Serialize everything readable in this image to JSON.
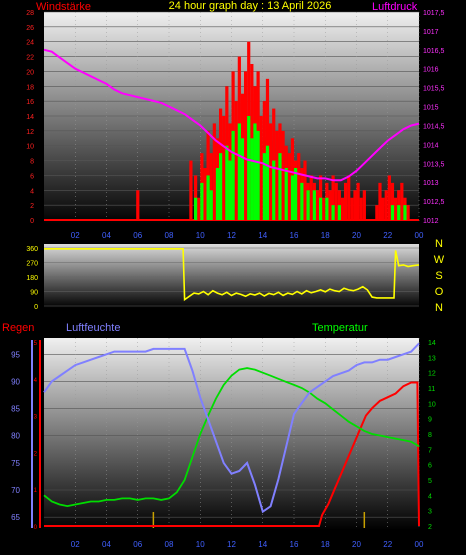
{
  "colors": {
    "wind": "#ff0000",
    "gust": "#00ff00",
    "pressure": "#ff00ff",
    "direction": "#ffff00",
    "humidity": "#8080ff",
    "temperature": "#00dd00",
    "rain": "#ff0000",
    "rain_label": "#ff0000",
    "title": "#ffff00",
    "tick_left_top": "#ff2020",
    "tick_right_top": "#ff30ff",
    "tick_bottom_left": "#8080ff",
    "tick_bottom_right": "#00dd00"
  },
  "chart_data": [
    {
      "id": "wind-pressure",
      "type": "bar",
      "title": "24 hour graph day : 13 April 2026",
      "left_label": "Windstärke",
      "right_label": "Luftdruck",
      "x_ticks": [
        "02",
        "04",
        "06",
        "08",
        "10",
        "12",
        "14",
        "16",
        "18",
        "20",
        "22",
        "00"
      ],
      "x_range": [
        0,
        24
      ],
      "y_left_range": [
        0,
        28
      ],
      "y_left_ticks": [
        "0",
        "2",
        "4",
        "6",
        "8",
        "10",
        "12",
        "14",
        "16",
        "18",
        "20",
        "22",
        "24",
        "26",
        "28"
      ],
      "y_right_range": [
        1012,
        1017.5
      ],
      "y_right_ticks": [
        "1012",
        "1012,5",
        "1013",
        "1013,5",
        "1014",
        "1014,5",
        "1015",
        "1015,5",
        "1016",
        "1016,5",
        "1017",
        "1017,5"
      ],
      "series": [
        {
          "name": "Windstärke",
          "kind": "bars",
          "x": [
            5.9,
            9.3,
            9.6,
            9.8,
            10.0,
            10.2,
            10.4,
            10.6,
            10.8,
            11.0,
            11.2,
            11.4,
            11.6,
            11.8,
            12.0,
            12.2,
            12.4,
            12.6,
            12.8,
            13.0,
            13.2,
            13.4,
            13.6,
            13.8,
            14.0,
            14.2,
            14.4,
            14.6,
            14.8,
            15.0,
            15.2,
            15.4,
            15.6,
            15.8,
            16.0,
            16.2,
            16.4,
            16.6,
            16.8,
            17.0,
            17.2,
            17.4,
            17.6,
            17.8,
            18.0,
            18.2,
            18.4,
            18.6,
            18.8,
            19.0,
            19.2,
            19.4,
            19.6,
            19.8,
            20.0,
            20.2,
            20.4,
            21.2,
            21.4,
            21.6,
            21.8,
            22.0,
            22.2,
            22.4,
            22.6,
            22.8,
            23.0,
            23.2
          ],
          "values": [
            4,
            8,
            6,
            3,
            9,
            7,
            12,
            9,
            13,
            11,
            15,
            14,
            18,
            13,
            20,
            16,
            22,
            17,
            20,
            24,
            21,
            18,
            20,
            14,
            16,
            19,
            13,
            15,
            12,
            13,
            12,
            10,
            9,
            11,
            8,
            9,
            7,
            8,
            5,
            6,
            5,
            4,
            6,
            3,
            5,
            4,
            6,
            5,
            4,
            3,
            5,
            6,
            3,
            4,
            5,
            3,
            4,
            2,
            5,
            3,
            4,
            6,
            5,
            3,
            4,
            5,
            3,
            2
          ]
        },
        {
          "name": "Böen",
          "kind": "bars",
          "x": [
            9.6,
            10.0,
            10.4,
            10.6,
            11.0,
            11.2,
            11.6,
            11.8,
            12.0,
            12.4,
            12.6,
            13.0,
            13.2,
            13.4,
            13.6,
            14.0,
            14.2,
            14.6,
            15.0,
            15.4,
            15.8,
            16.0,
            16.4,
            16.8,
            17.2,
            17.6,
            18.0,
            18.4,
            18.8,
            22.2,
            22.6,
            23.0
          ],
          "values": [
            3,
            5,
            6,
            4,
            7,
            9,
            10,
            8,
            12,
            13,
            11,
            14,
            11,
            13,
            12,
            9,
            10,
            8,
            9,
            7,
            6,
            7,
            5,
            4,
            4,
            3,
            3,
            2,
            2,
            2,
            2,
            2
          ]
        },
        {
          "name": "Luftdruck",
          "kind": "line",
          "axis": "right",
          "x": [
            0,
            0.5,
            1.0,
            1.5,
            2.0,
            2.5,
            3.0,
            3.5,
            4.0,
            4.5,
            5.0,
            5.5,
            6.0,
            6.5,
            7.0,
            7.5,
            8.0,
            8.5,
            9.0,
            9.5,
            10.0,
            10.5,
            11.0,
            11.5,
            12.0,
            12.5,
            13.0,
            13.5,
            14.0,
            14.5,
            15.0,
            15.5,
            16.0,
            16.5,
            17.0,
            17.5,
            18.0,
            18.5,
            19.0,
            19.5,
            20.0,
            20.5,
            21.0,
            21.5,
            22.0,
            22.5,
            23.0,
            23.5,
            24.0
          ],
          "values": [
            1016.5,
            1016.45,
            1016.3,
            1016.15,
            1016.0,
            1015.9,
            1015.8,
            1015.7,
            1015.6,
            1015.45,
            1015.35,
            1015.3,
            1015.25,
            1015.2,
            1015.15,
            1015.1,
            1015.0,
            1014.9,
            1014.8,
            1014.65,
            1014.5,
            1014.3,
            1014.1,
            1013.95,
            1013.8,
            1013.7,
            1013.6,
            1013.55,
            1013.5,
            1013.4,
            1013.35,
            1013.3,
            1013.25,
            1013.2,
            1013.15,
            1013.1,
            1013.1,
            1013.05,
            1013.05,
            1013.15,
            1013.3,
            1013.5,
            1013.7,
            1013.9,
            1014.1,
            1014.25,
            1014.4,
            1014.5,
            1014.55
          ]
        }
      ]
    },
    {
      "id": "wind-direction",
      "type": "line",
      "x_ticks": [],
      "x_range": [
        0,
        24
      ],
      "y_left_range": [
        0,
        360
      ],
      "y_left_ticks": [
        "0",
        "90",
        "180",
        "270",
        "360"
      ],
      "right_labels": [
        "N",
        "W",
        "S",
        "O",
        "N"
      ],
      "series": [
        {
          "name": "Windrichtung",
          "x": [
            0,
            1,
            2,
            3,
            4,
            5,
            6,
            7,
            8,
            8.9,
            9.0,
            9.3,
            9.6,
            9.9,
            10.2,
            10.5,
            10.8,
            11.1,
            11.4,
            11.7,
            12.0,
            12.3,
            12.6,
            12.9,
            13.2,
            13.5,
            13.8,
            14.1,
            14.4,
            14.7,
            15.0,
            15.3,
            15.6,
            15.9,
            16.2,
            16.5,
            16.8,
            17.1,
            17.4,
            17.7,
            18.0,
            18.3,
            18.6,
            18.9,
            19.2,
            19.5,
            19.8,
            20.1,
            20.4,
            20.7,
            21.0,
            21.3,
            21.6,
            21.9,
            22.2,
            22.4,
            22.5,
            22.7,
            23.0,
            23.3,
            23.6,
            24.0
          ],
          "values": [
            355,
            355,
            355,
            355,
            355,
            355,
            355,
            355,
            355,
            355,
            40,
            60,
            80,
            75,
            90,
            70,
            95,
            80,
            70,
            85,
            65,
            80,
            72,
            60,
            75,
            68,
            80,
            62,
            78,
            70,
            85,
            66,
            80,
            72,
            90,
            75,
            95,
            82,
            90,
            100,
            88,
            105,
            95,
            90,
            110,
            100,
            95,
            105,
            120,
            100,
            55,
            50,
            50,
            50,
            50,
            50,
            345,
            250,
            255,
            245,
            250,
            255
          ]
        }
      ]
    },
    {
      "id": "humidity-temp-rain",
      "type": "line",
      "left_label": "Regen",
      "mid_label": "Luftfeuchte",
      "right_label": "Temperatur",
      "x_ticks": [
        "02",
        "04",
        "06",
        "08",
        "10",
        "12",
        "14",
        "16",
        "18",
        "20",
        "22",
        "00"
      ],
      "x_range": [
        0,
        24
      ],
      "y_left_range": [
        63,
        98
      ],
      "y_left_ticks": [
        "65",
        "70",
        "75",
        "80",
        "85",
        "90",
        "95"
      ],
      "y_right_range": [
        2,
        14
      ],
      "y_right_ticks": [
        "2",
        "3",
        "4",
        "5",
        "6",
        "7",
        "8",
        "9",
        "10",
        "11",
        "12",
        "13",
        "14"
      ],
      "rain_ticks": [
        "0",
        "1",
        "2",
        "3",
        "4",
        "5"
      ],
      "series": [
        {
          "name": "Luftfeuchte",
          "axis": "left",
          "x": [
            0,
            0.5,
            1.0,
            1.5,
            2.0,
            2.5,
            3.0,
            3.5,
            4.0,
            4.5,
            5.0,
            5.5,
            6.0,
            6.5,
            7.0,
            7.5,
            8.0,
            8.5,
            9.0,
            9.5,
            10.0,
            10.5,
            11.0,
            11.5,
            12.0,
            12.5,
            13.0,
            13.5,
            14.0,
            14.5,
            15.0,
            15.5,
            16.0,
            16.5,
            17.0,
            17.5,
            18.0,
            18.5,
            19.0,
            19.5,
            20.0,
            20.5,
            21.0,
            21.5,
            22.0,
            22.5,
            23.0,
            23.5,
            24.0
          ],
          "values": [
            88,
            90,
            91,
            92,
            93,
            93.5,
            94,
            94.5,
            95,
            95.5,
            95.5,
            95.5,
            95.5,
            95.5,
            96,
            96,
            96,
            96,
            96,
            92,
            87,
            83,
            79,
            75,
            73,
            73.5,
            75,
            71,
            66,
            67,
            72,
            78,
            84,
            86,
            88,
            89,
            90,
            91,
            91.5,
            92,
            93,
            93.5,
            93.5,
            94,
            94,
            94.5,
            95,
            95.5,
            97
          ]
        },
        {
          "name": "Temperatur",
          "axis": "right",
          "x": [
            0,
            0.5,
            1.0,
            1.5,
            2.0,
            2.5,
            3.0,
            3.5,
            4.0,
            4.5,
            5.0,
            5.5,
            6.0,
            6.5,
            7.0,
            7.5,
            8.0,
            8.5,
            9.0,
            9.5,
            10.0,
            10.5,
            11.0,
            11.5,
            12.0,
            12.5,
            13.0,
            13.5,
            14.0,
            14.5,
            15.0,
            15.5,
            16.0,
            16.5,
            17.0,
            17.5,
            18.0,
            18.5,
            19.0,
            19.5,
            20.0,
            20.5,
            21.0,
            21.5,
            22.0,
            22.5,
            23.0,
            23.5,
            24.0
          ],
          "values": [
            4.0,
            3.6,
            3.4,
            3.3,
            3.4,
            3.5,
            3.6,
            3.6,
            3.7,
            3.7,
            3.8,
            3.8,
            3.7,
            3.8,
            3.8,
            3.7,
            3.8,
            4.2,
            5.0,
            6.5,
            8.0,
            9.2,
            10.3,
            11.2,
            11.8,
            12.2,
            12.3,
            12.2,
            12.0,
            11.8,
            11.6,
            11.4,
            11.2,
            11.0,
            10.7,
            10.3,
            10.0,
            9.6,
            9.2,
            8.8,
            8.5,
            8.2,
            8.0,
            7.9,
            7.8,
            7.7,
            7.6,
            7.5,
            7.2
          ]
        },
        {
          "name": "Regen",
          "axis": "rain",
          "x": [
            0,
            17.6,
            17.8,
            18.2,
            18.6,
            19.0,
            19.4,
            19.8,
            20.2,
            20.6,
            21.0,
            21.5,
            22.0,
            22.5,
            23.0,
            23.5,
            23.9,
            24.0
          ],
          "values": [
            0,
            0,
            0.3,
            0.6,
            1.0,
            1.4,
            1.8,
            2.2,
            2.6,
            3.0,
            3.2,
            3.4,
            3.5,
            3.6,
            3.8,
            3.9,
            3.9,
            0
          ],
          "rain_range": [
            0,
            5
          ]
        }
      ]
    }
  ]
}
